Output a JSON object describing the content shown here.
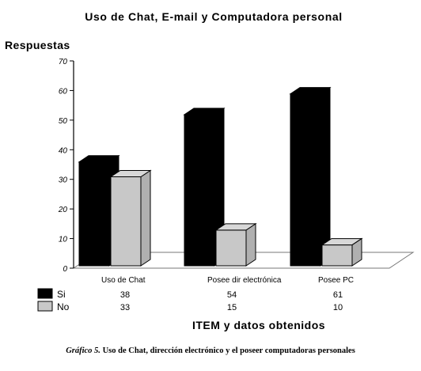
{
  "chart_data": {
    "type": "bar",
    "title": "Uso de  Chat, E-mail  y  Computadora personal",
    "ylabel": "Respuestas",
    "xlabel": "ITEM y datos obtenidos",
    "categories": [
      "Uso de Chat",
      "Posee dir electrónica",
      "Posee PC"
    ],
    "series": [
      {
        "name": "Si",
        "values": [
          38,
          54,
          61
        ],
        "color": "#000000"
      },
      {
        "name": "No",
        "values": [
          33,
          15,
          10
        ],
        "color": "#c8c8c8"
      }
    ],
    "ylim": [
      0,
      70
    ],
    "yticks": [
      "0",
      "10",
      "20",
      "30",
      "40",
      "50",
      "60",
      "70"
    ],
    "grid": false,
    "style": "3d-bar",
    "data_table": true
  },
  "caption": {
    "lead": "Gráfico 5.",
    "text": "Uso de Chat, dirección electrónico y el poseer computadoras personales"
  }
}
